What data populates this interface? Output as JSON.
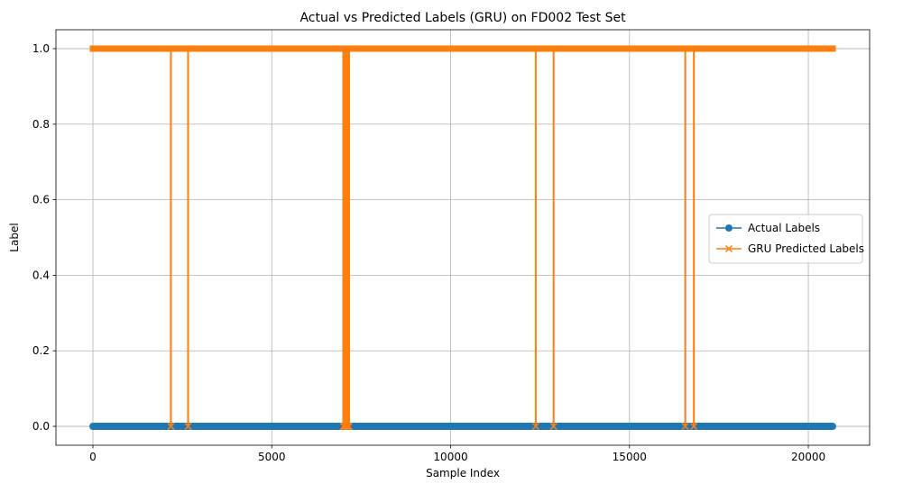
{
  "chart_data": {
    "type": "line",
    "title": "Actual vs Predicted Labels (GRU) on FD002 Test Set",
    "xlabel": "Sample Index",
    "ylabel": "Label",
    "xlim": [
      -1034,
      21714
    ],
    "ylim": [
      -0.05,
      1.05
    ],
    "x_ticks": [
      0,
      5000,
      10000,
      15000,
      20000
    ],
    "y_ticks": [
      0.0,
      0.2,
      0.4,
      0.6,
      0.8,
      1.0
    ],
    "x_tick_labels": [
      "0",
      "5000",
      "10000",
      "15000",
      "20000"
    ],
    "y_tick_labels": [
      "0.0",
      "0.2",
      "0.4",
      "0.6",
      "0.8",
      "1.0"
    ],
    "grid": true,
    "legend_position": "center-right",
    "n_samples": 20680,
    "series": [
      {
        "name": "Actual Labels",
        "color": "#1f77b4",
        "marker": "o",
        "description": "constant 0",
        "value": 0
      },
      {
        "name": "GRU Predicted Labels",
        "color": "#ff7f0e",
        "marker": "x",
        "description": "mostly 1, drops to 0 at listed indices",
        "value": 1,
        "zero_indices": [
          2180,
          2660,
          7000,
          7020,
          7040,
          7060,
          7080,
          7100,
          7120,
          7140,
          7160,
          12380,
          12880,
          16560,
          16800
        ]
      }
    ]
  }
}
